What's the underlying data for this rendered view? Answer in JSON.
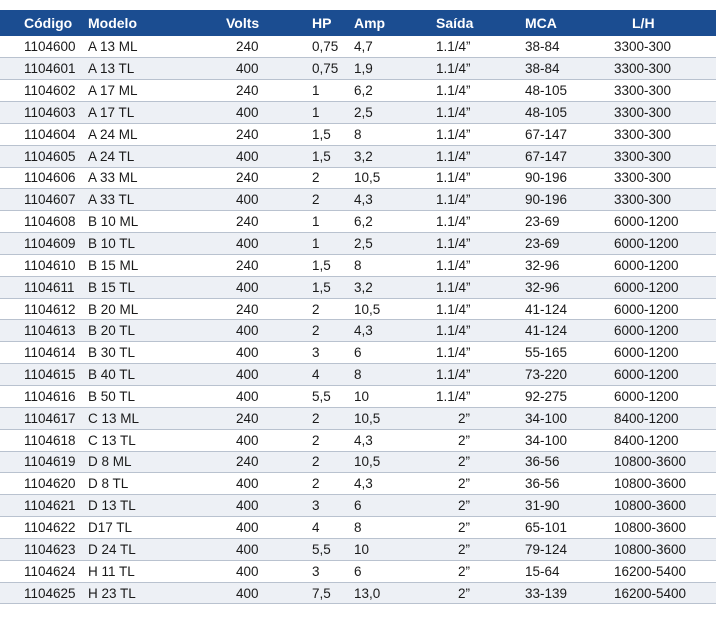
{
  "headers": [
    "Código",
    "Modelo",
    "Volts",
    "HP",
    "Amp",
    "Saída",
    "MCA",
    "L/H"
  ],
  "rows": [
    [
      "1104600",
      "A 13 ML",
      "240",
      "0,75",
      "4,7",
      "1.1/4”",
      "38-84",
      "3300-300"
    ],
    [
      "1104601",
      "A 13 TL",
      "400",
      "0,75",
      "1,9",
      "1.1/4”",
      "38-84",
      "3300-300"
    ],
    [
      "1104602",
      "A 17 ML",
      "240",
      "1",
      "6,2",
      "1.1/4”",
      "48-105",
      "3300-300"
    ],
    [
      "1104603",
      "A 17 TL",
      "400",
      "1",
      "2,5",
      "1.1/4”",
      "48-105",
      "3300-300"
    ],
    [
      "1104604",
      "A 24 ML",
      "240",
      "1,5",
      "8",
      "1.1/4”",
      "67-147",
      "3300-300"
    ],
    [
      "1104605",
      "A 24 TL",
      "400",
      "1,5",
      "3,2",
      "1.1/4”",
      "67-147",
      "3300-300"
    ],
    [
      "1104606",
      "A 33 ML",
      "240",
      "2",
      "10,5",
      "1.1/4”",
      "90-196",
      "3300-300"
    ],
    [
      "1104607",
      "A 33 TL",
      "400",
      "2",
      "4,3",
      "1.1/4”",
      "90-196",
      "3300-300"
    ],
    [
      "1104608",
      "B 10 ML",
      "240",
      "1",
      "6,2",
      "1.1/4”",
      "23-69",
      "6000-1200"
    ],
    [
      "1104609",
      "B 10 TL",
      "400",
      "1",
      "2,5",
      "1.1/4”",
      "23-69",
      "6000-1200"
    ],
    [
      "1104610",
      "B 15 ML",
      "240",
      "1,5",
      "8",
      "1.1/4”",
      "32-96",
      "6000-1200"
    ],
    [
      "1104611",
      "B 15 TL",
      "400",
      "1,5",
      "3,2",
      "1.1/4”",
      "32-96",
      "6000-1200"
    ],
    [
      "1104612",
      "B 20 ML",
      "240",
      "2",
      "10,5",
      "1.1/4”",
      "41-124",
      "6000-1200"
    ],
    [
      "1104613",
      "B 20 TL",
      "400",
      "2",
      "4,3",
      "1.1/4”",
      "41-124",
      "6000-1200"
    ],
    [
      "1104614",
      "B 30 TL",
      "400",
      "3",
      "6",
      "1.1/4”",
      "55-165",
      "6000-1200"
    ],
    [
      "1104615",
      "B 40 TL",
      "400",
      "4",
      "8",
      "1.1/4”",
      "73-220",
      "6000-1200"
    ],
    [
      "1104616",
      "B 50 TL",
      "400",
      "5,5",
      "10",
      "1.1/4”",
      "92-275",
      "6000-1200"
    ],
    [
      "1104617",
      "C 13 ML",
      "240",
      "2",
      "10,5",
      "2”",
      "34-100",
      "8400-1200"
    ],
    [
      "1104618",
      "C 13 TL",
      "400",
      "2",
      "4,3",
      "2”",
      "34-100",
      "8400-1200"
    ],
    [
      "1104619",
      "D 8 ML",
      "240",
      "2",
      "10,5",
      "2”",
      "36-56",
      "10800-3600"
    ],
    [
      "1104620",
      "D 8 TL",
      "400",
      "2",
      "4,3",
      "2”",
      "36-56",
      "10800-3600"
    ],
    [
      "1104621",
      "D 13 TL",
      "400",
      "3",
      "6",
      "2”",
      "31-90",
      "10800-3600"
    ],
    [
      "1104622",
      "D17 TL",
      "400",
      "4",
      "8",
      "2”",
      "65-101",
      "10800-3600"
    ],
    [
      "1104623",
      "D 24 TL",
      "400",
      "5,5",
      "10",
      "2”",
      "79-124",
      "10800-3600"
    ],
    [
      "1104624",
      "H 11 TL",
      "400",
      "3",
      "6",
      "2”",
      "15-64",
      "16200-5400"
    ],
    [
      "1104625",
      "H 23 TL",
      "400",
      "7,5",
      "13,0",
      "2”",
      "33-139",
      "16200-5400"
    ]
  ],
  "colors": {
    "header_bg": "#1b4d91",
    "header_text": "#ffffff",
    "row_alt_bg": "#edf0f5",
    "divider": "#b9c2cf"
  }
}
